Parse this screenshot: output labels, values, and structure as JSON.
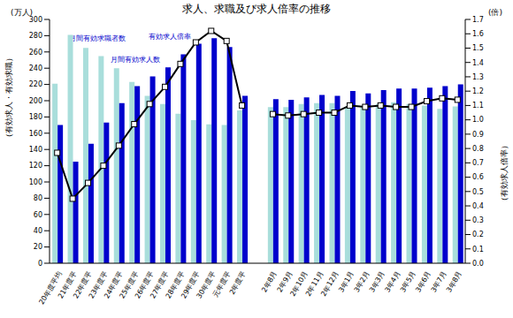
{
  "chart_data": {
    "type": "bar",
    "title": "求人、求職及び求人倍率の推移",
    "categories": [
      "20年度平均",
      "21年度平",
      "22年度平",
      "23年度平",
      "24年度平",
      "25年度平",
      "26年度平",
      "27年度平",
      "28年度平",
      "29年度平",
      "30年度平",
      "元年度平",
      "2年度平",
      null,
      "2年8月",
      "2年9月",
      "2年10月",
      "2年11月",
      "2年12月",
      "3年1月",
      "3年2月",
      "3年3月",
      "3年4月",
      "3年5月",
      "3年6月",
      "3年7月",
      "3年8月"
    ],
    "series": [
      {
        "name": "月間有効求職者数",
        "type": "bar",
        "color": "#a9dedb",
        "values": [
          221,
          281,
          265,
          255,
          240,
          223,
          206,
          196,
          184,
          176,
          171,
          170,
          188,
          null,
          192,
          192,
          196,
          197,
          197,
          193,
          192,
          196,
          198,
          196,
          194,
          190,
          193
        ]
      },
      {
        "name": "月間有効求人数",
        "type": "bar",
        "color": "#0000cc",
        "values": [
          170,
          125,
          147,
          173,
          197,
          218,
          230,
          241,
          257,
          270,
          277,
          266,
          206,
          null,
          202,
          201,
          204,
          207,
          206,
          212,
          209,
          213,
          215,
          215,
          216,
          218,
          220
        ]
      },
      {
        "name": "有効求人倍率",
        "type": "line",
        "axis": "y2",
        "color": "#000000",
        "marker": "square",
        "values": [
          0.77,
          0.45,
          0.56,
          0.68,
          0.82,
          0.97,
          1.11,
          1.23,
          1.39,
          1.54,
          1.62,
          1.55,
          1.1,
          null,
          1.04,
          1.03,
          1.04,
          1.05,
          1.05,
          1.1,
          1.09,
          1.1,
          1.09,
          1.09,
          1.13,
          1.15,
          1.14
        ]
      }
    ],
    "y_unit": "(万人)",
    "y_label": "（有効求人・有効求職）",
    "y2_unit": "(倍)",
    "y2_label": "（有効求人倍率）",
    "ylim": [
      0,
      300
    ],
    "yticks": [
      0,
      20,
      40,
      60,
      80,
      100,
      120,
      140,
      160,
      180,
      200,
      220,
      240,
      260,
      280,
      300
    ],
    "y2lim": [
      0,
      1.7
    ],
    "y2ticks": [
      {
        "value": 0,
        "label": "0.0"
      },
      0.1,
      0.2,
      0.3,
      0.4,
      0.5,
      0.6,
      0.7,
      0.8,
      0.9,
      {
        "value": 1,
        "label": "1.0"
      },
      1.1,
      1.2,
      1.3,
      1.4,
      1.5,
      1.6,
      1.7
    ],
    "grid": false
  }
}
